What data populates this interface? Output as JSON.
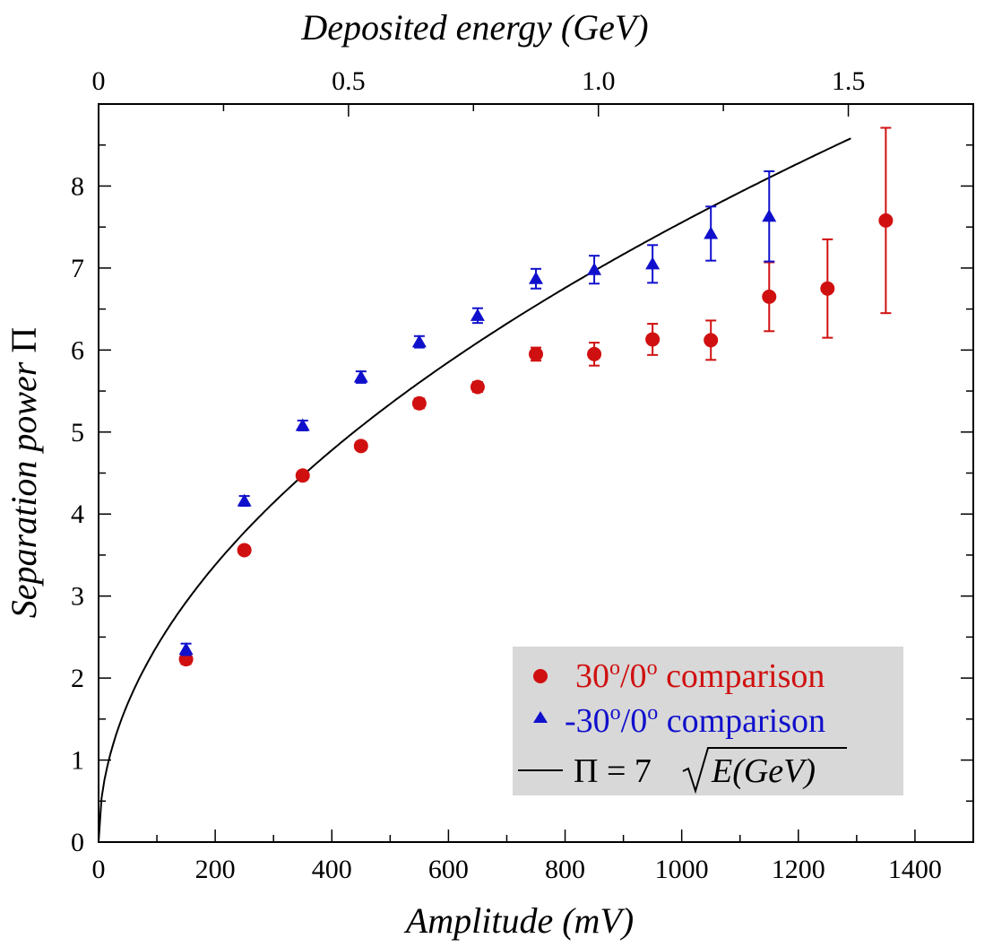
{
  "chart_data": {
    "type": "scatter",
    "xlabel": "Amplitude (mV)",
    "x2label": "Deposited energy (GeV)",
    "ylabel_text": "Separation power ",
    "ylabel_symbol": "Π",
    "xlim": [
      0,
      1500
    ],
    "ylim": [
      0,
      9
    ],
    "x2lim": [
      0,
      1.75
    ],
    "xticks": [
      0,
      200,
      400,
      600,
      800,
      1000,
      1200,
      1400
    ],
    "x2ticks": [
      0,
      0.5,
      1.0,
      1.5
    ],
    "x2tick_labels": [
      "0",
      "0.5",
      "1.0",
      "1.5"
    ],
    "yticks": [
      0,
      1,
      2,
      3,
      4,
      5,
      6,
      7,
      8
    ],
    "grid": false,
    "legend_position": "bottom-right",
    "colors": {
      "red": "#d01010",
      "blue": "#1010cc",
      "line": "#000000",
      "legend_bg": "#d8d8d8"
    },
    "series": [
      {
        "name": "30°/0° comparison",
        "label_main": "30",
        "label_sup1": "o",
        "label_mid": "/0",
        "label_sup2": "o",
        "label_tail": " comparison",
        "marker": "circle",
        "color": "#d01010",
        "points": [
          {
            "x": 150,
            "y": 2.23,
            "err": 0.06
          },
          {
            "x": 250,
            "y": 3.56,
            "err": 0.05
          },
          {
            "x": 350,
            "y": 4.47,
            "err": 0.05
          },
          {
            "x": 450,
            "y": 4.83,
            "err": 0.05
          },
          {
            "x": 550,
            "y": 5.35,
            "err": 0.06
          },
          {
            "x": 650,
            "y": 5.55,
            "err": 0.06
          },
          {
            "x": 750,
            "y": 5.95,
            "err": 0.08
          },
          {
            "x": 850,
            "y": 5.95,
            "err": 0.14
          },
          {
            "x": 950,
            "y": 6.13,
            "err": 0.19
          },
          {
            "x": 1050,
            "y": 6.12,
            "err": 0.24
          },
          {
            "x": 1150,
            "y": 6.65,
            "err": 0.42
          },
          {
            "x": 1250,
            "y": 6.75,
            "err": 0.6
          },
          {
            "x": 1350,
            "y": 7.58,
            "err": 1.13
          }
        ]
      },
      {
        "name": "-30°/0° comparison",
        "label_main": "-30",
        "label_sup1": "o",
        "label_mid": "/0",
        "label_sup2": "o",
        "label_tail": " comparison",
        "marker": "triangle",
        "color": "#1010cc",
        "points": [
          {
            "x": 150,
            "y": 2.35,
            "err": 0.07
          },
          {
            "x": 250,
            "y": 4.16,
            "err": 0.06
          },
          {
            "x": 350,
            "y": 5.08,
            "err": 0.06
          },
          {
            "x": 450,
            "y": 5.67,
            "err": 0.07
          },
          {
            "x": 550,
            "y": 6.1,
            "err": 0.07
          },
          {
            "x": 650,
            "y": 6.42,
            "err": 0.09
          },
          {
            "x": 750,
            "y": 6.87,
            "err": 0.12
          },
          {
            "x": 850,
            "y": 6.98,
            "err": 0.17
          },
          {
            "x": 950,
            "y": 7.05,
            "err": 0.23
          },
          {
            "x": 1050,
            "y": 7.42,
            "err": 0.33
          },
          {
            "x": 1150,
            "y": 7.63,
            "err": 0.55
          }
        ]
      }
    ],
    "curve": {
      "name": "Π = 7√E(GeV)",
      "label_prefix": "Π = 7",
      "label_radicand": "E(GeV)",
      "coefficient": 7,
      "energy_per_mV": 0.001165,
      "x_range": [
        0,
        1290
      ]
    }
  }
}
